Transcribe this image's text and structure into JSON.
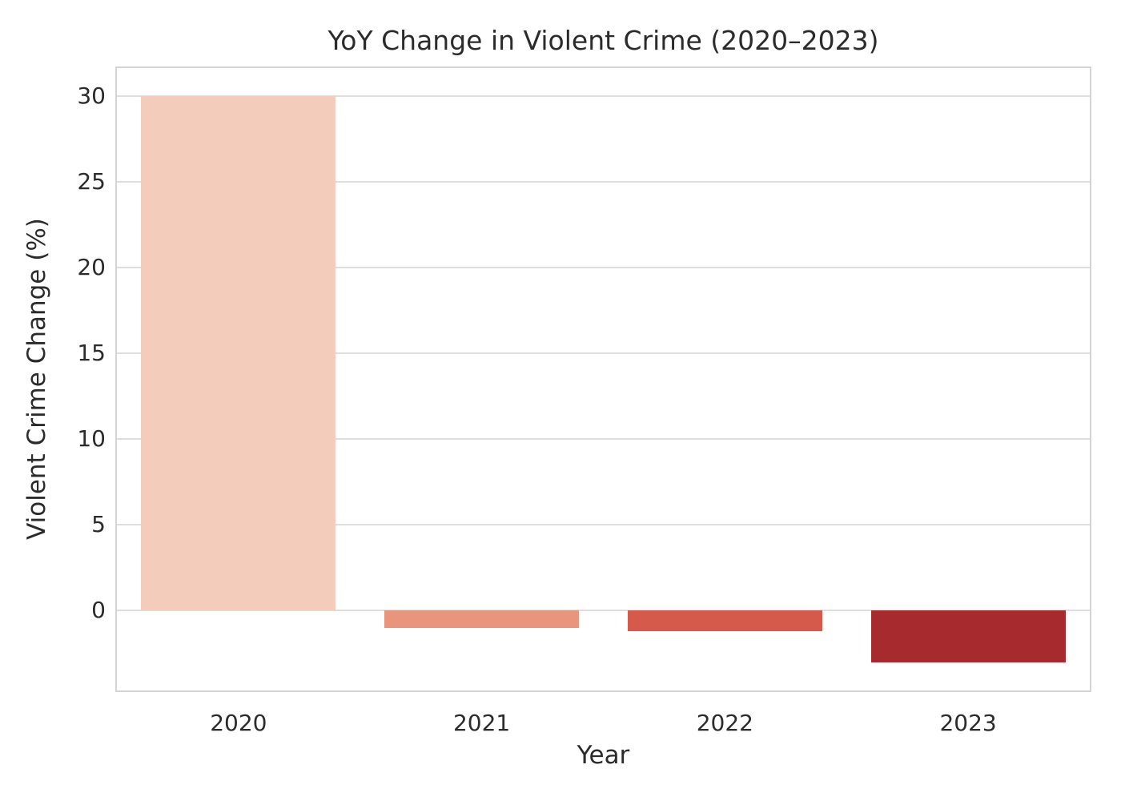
{
  "chart_data": {
    "type": "bar",
    "title": "YoY Change in Violent Crime (2020–2023)",
    "xlabel": "Year",
    "ylabel": "Violent Crime Change (%)",
    "categories": [
      "2020",
      "2021",
      "2022",
      "2023"
    ],
    "values": [
      30.0,
      -1.0,
      -1.2,
      -3.0
    ],
    "ylim": [
      -4.65,
      31.65
    ],
    "yticks": [
      0,
      5,
      10,
      15,
      20,
      25,
      30
    ],
    "grid": true,
    "legend": false,
    "bar_colors": [
      "#f3ccbc",
      "#e9947d",
      "#d65a4c",
      "#a62a2e"
    ],
    "bar_width_fraction": 0.8
  },
  "colors": {
    "background": "#ffffff",
    "grid": "#dedede",
    "axis_border": "#d4d4d4",
    "text": "#2b2b2b"
  }
}
